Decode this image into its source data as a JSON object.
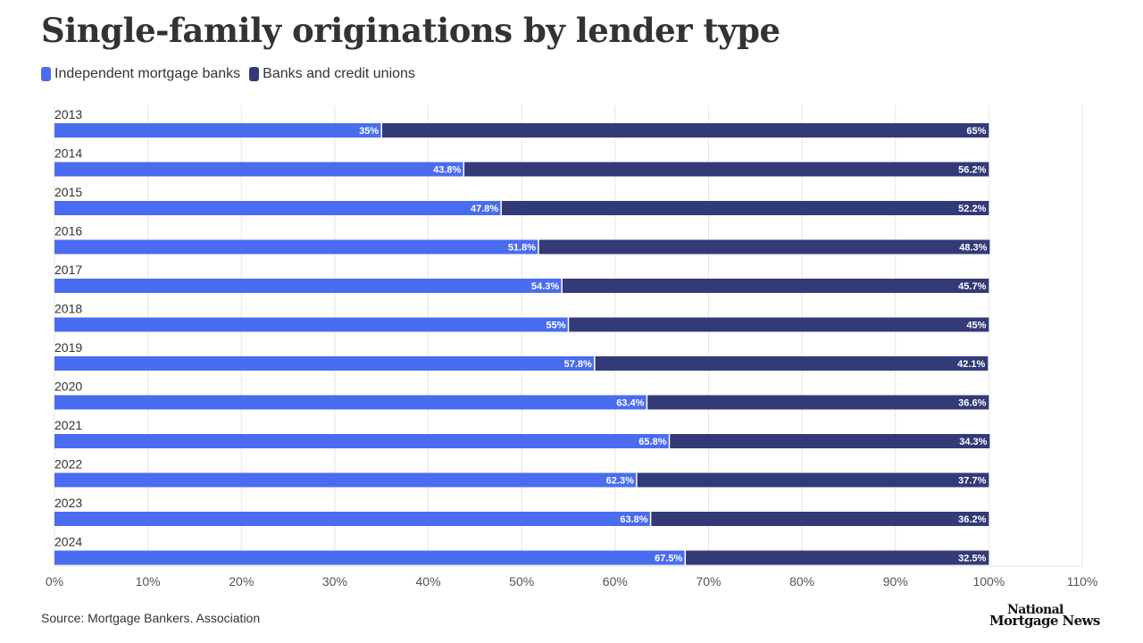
{
  "title": "Single-family originations by lender type",
  "source": "Source: Mortgage Bankers. Association",
  "logo": {
    "line1": "National",
    "line2": "Mortgage News"
  },
  "colors": {
    "imb": "#4a6cf0",
    "banks": "#323a78",
    "grid": "#e6e6e6"
  },
  "chart_data": {
    "type": "bar",
    "orientation": "horizontal",
    "stacked": true,
    "title": "Single-family originations by lender type",
    "categories": [
      "2013",
      "2014",
      "2015",
      "2016",
      "2017",
      "2018",
      "2019",
      "2020",
      "2021",
      "2022",
      "2023",
      "2024"
    ],
    "series": [
      {
        "name": "Independent mortgage banks",
        "color": "#4a6cf0",
        "values": [
          35,
          43.8,
          47.8,
          51.8,
          54.3,
          55,
          57.8,
          63.4,
          65.8,
          62.3,
          63.8,
          67.5
        ],
        "labels": [
          "35%",
          "43.8%",
          "47.8%",
          "51.8%",
          "54.3%",
          "55%",
          "57.8%",
          "63.4%",
          "65.8%",
          "62.3%",
          "63.8%",
          "67.5%"
        ]
      },
      {
        "name": "Banks and credit unions",
        "color": "#323a78",
        "values": [
          65,
          56.2,
          52.2,
          48.3,
          45.7,
          45,
          42.1,
          36.6,
          34.3,
          37.7,
          36.2,
          32.5
        ],
        "labels": [
          "65%",
          "56.2%",
          "52.2%",
          "48.3%",
          "45.7%",
          "45%",
          "42.1%",
          "36.6%",
          "34.3%",
          "37.7%",
          "36.2%",
          "32.5%"
        ]
      }
    ],
    "xlim": [
      0,
      110
    ],
    "x_ticks": [
      "0%",
      "10%",
      "20%",
      "30%",
      "40%",
      "50%",
      "60%",
      "70%",
      "80%",
      "90%",
      "100%",
      "110%"
    ],
    "legend_position": "top-left",
    "grid": true
  }
}
